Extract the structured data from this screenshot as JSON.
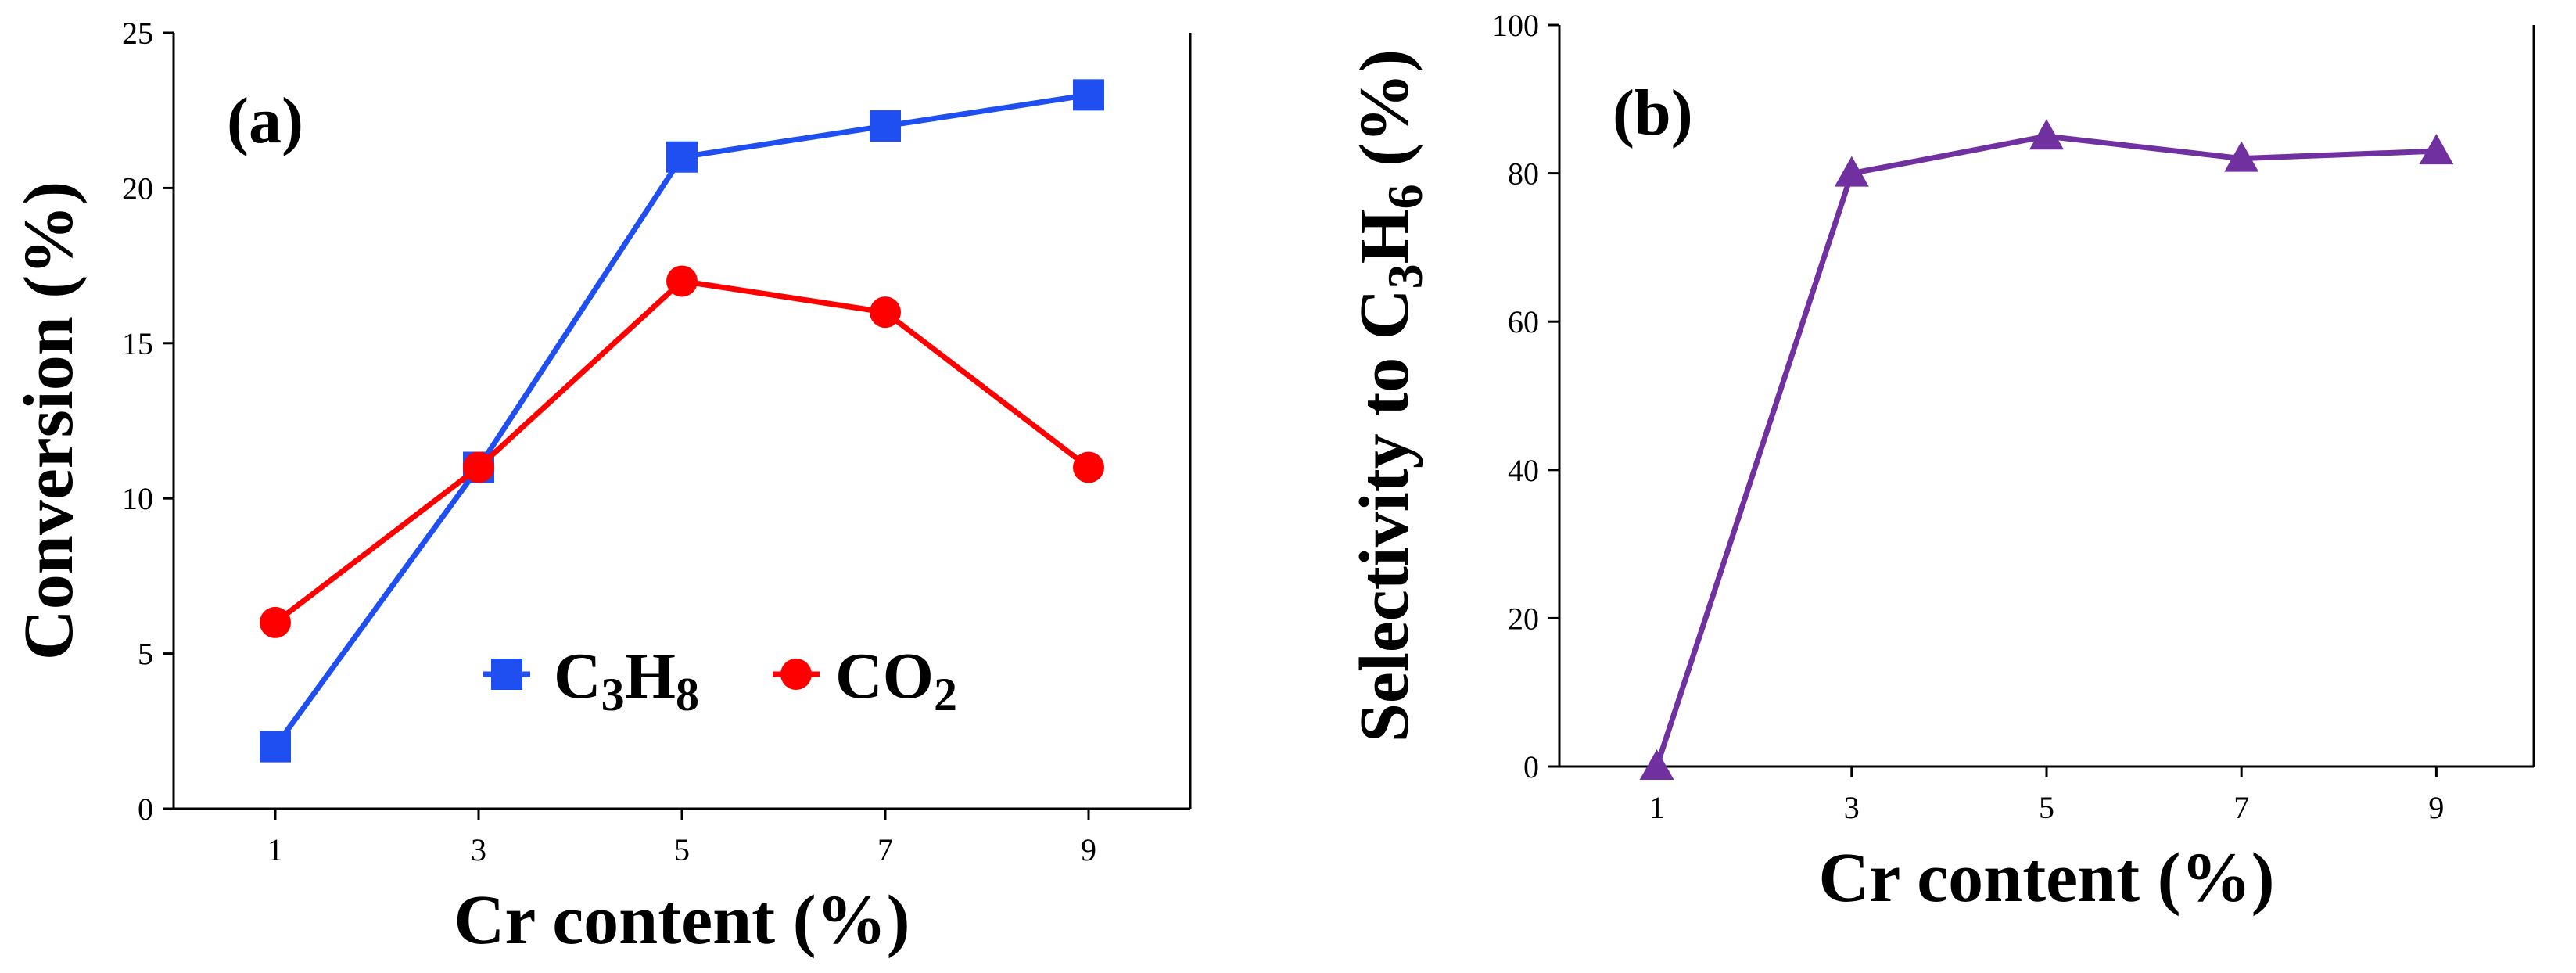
{
  "chart_data": [
    {
      "type": "line",
      "panel_label": "(a)",
      "xlabel": "Cr content (%)",
      "ylabel": "Conversion (%)",
      "x": [
        1,
        3,
        5,
        7,
        9
      ],
      "xlim": [
        0,
        10
      ],
      "ylim": [
        0,
        25
      ],
      "xticks": [
        "1",
        "3",
        "5",
        "7",
        "9"
      ],
      "yticks": [
        "0",
        "5",
        "10",
        "15",
        "20",
        "25"
      ],
      "legend_position": "bottom-center",
      "series": [
        {
          "name": "C3H8",
          "name_main": "C",
          "name_sub1": "3",
          "name_mid": "H",
          "name_sub2": "8",
          "marker": "square",
          "color": "#1f4ff0",
          "values": [
            2,
            11,
            21,
            22,
            23
          ]
        },
        {
          "name": "CO2",
          "name_main": "CO",
          "name_sub1": "2",
          "marker": "circle",
          "color": "#ff0000",
          "values": [
            6,
            11,
            17,
            16,
            11
          ]
        }
      ]
    },
    {
      "type": "line",
      "panel_label": "(b)",
      "xlabel": "Cr content (%)",
      "ylabel": "Selectivity to C3H6 (%)",
      "ylabel_main": "Selectivity to C",
      "ylabel_sub1": "3",
      "ylabel_mid": "H",
      "ylabel_sub2": "6",
      "ylabel_tail": " (%)",
      "x": [
        1,
        3,
        5,
        7,
        9
      ],
      "xlim": [
        0,
        10
      ],
      "ylim": [
        0,
        100
      ],
      "xticks": [
        "1",
        "3",
        "5",
        "7",
        "9"
      ],
      "yticks": [
        "0",
        "20",
        "40",
        "60",
        "80",
        "100"
      ],
      "series": [
        {
          "name": "Selectivity to C3H6",
          "marker": "triangle",
          "color": "#7030a0",
          "values": [
            0,
            80,
            85,
            82,
            83
          ]
        }
      ]
    }
  ]
}
